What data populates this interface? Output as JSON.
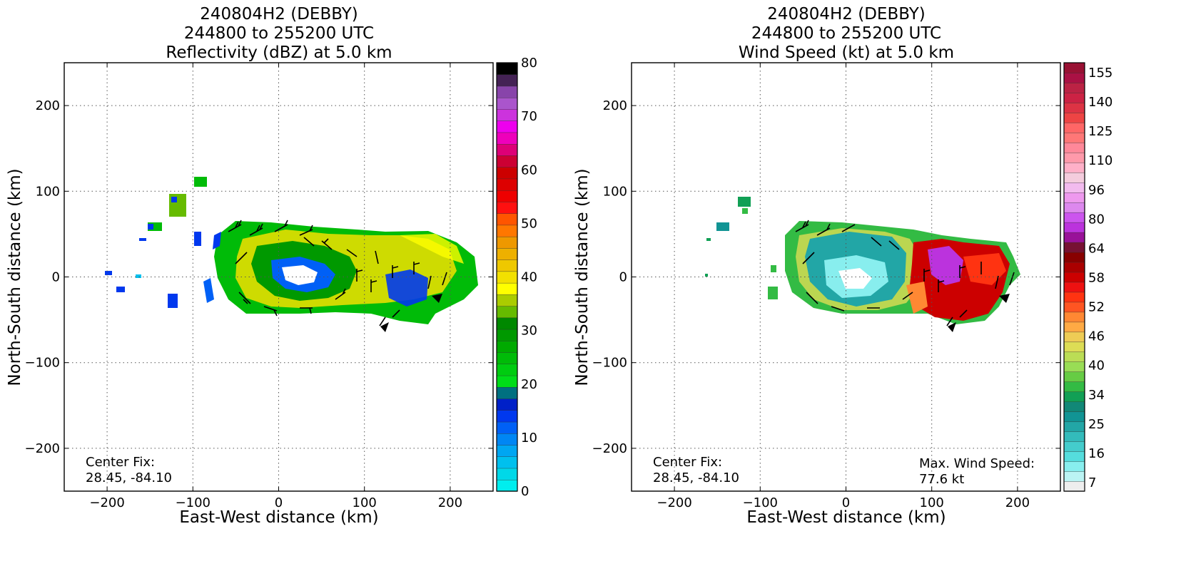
{
  "chart_data": [
    {
      "type": "heatmap",
      "title_lines": [
        "240804H2 (DEBBY)",
        "244800 to 255200 UTC",
        "Reflectivity (dBZ) at 5.0 km"
      ],
      "xlabel": "East-West distance (km)",
      "ylabel": "North-South distance (km)",
      "xlim": [
        -250,
        250
      ],
      "ylim": [
        -250,
        250
      ],
      "xticks": [
        -200,
        -100,
        0,
        100,
        200
      ],
      "yticks": [
        -200,
        -100,
        0,
        100,
        200
      ],
      "grid": true,
      "annotations": [
        {
          "text": "Center Fix:\n28.45, -84.10",
          "position": "bottom-left"
        }
      ],
      "colorbar": {
        "vmin": 0,
        "vmax": 80,
        "ticks": [
          0,
          10,
          20,
          30,
          40,
          50,
          60,
          70,
          80
        ],
        "colors": [
          "#00eeee",
          "#00d8e8",
          "#00c0ee",
          "#00a6f2",
          "#0086f4",
          "#0060f6",
          "#0038ee",
          "#0020c8",
          "#007080",
          "#00dd18",
          "#00cc10",
          "#00bb08",
          "#00aa00",
          "#009900",
          "#008800",
          "#66bb00",
          "#aacc00",
          "#ffff00",
          "#f2e000",
          "#eec800",
          "#eeb000",
          "#ee9800",
          "#ff7700",
          "#ff5500",
          "#ff1010",
          "#ee0000",
          "#dd0000",
          "#cc0000",
          "#cc0033",
          "#dd0077",
          "#ee00bb",
          "#ee00ee",
          "#cc33dd",
          "#aa55cc",
          "#8844aa",
          "#442255",
          "#000000"
        ]
      },
      "field_description": "Reflectivity field centered near x=60 km, y=0 km; bands of green/yellow with blue eye region"
    },
    {
      "type": "heatmap",
      "title_lines": [
        "240804H2 (DEBBY)",
        "244800 to 255200 UTC",
        "Wind Speed (kt) at 5.0 km"
      ],
      "xlabel": "East-West distance (km)",
      "ylabel": "North-South distance (km)",
      "xlim": [
        -250,
        250
      ],
      "ylim": [
        -250,
        250
      ],
      "xticks": [
        -200,
        -100,
        0,
        100,
        200
      ],
      "yticks": [
        -200,
        -100,
        0,
        100,
        200
      ],
      "grid": true,
      "annotations": [
        {
          "text": "Center Fix:\n28.45, -84.10",
          "position": "bottom-left"
        },
        {
          "text": "Max. Wind Speed:\n77.6 kt",
          "position": "bottom-right"
        }
      ],
      "colorbar": {
        "tick_labels": [
          "7",
          "16",
          "25",
          "34",
          "40",
          "46",
          "52",
          "58",
          "64",
          "80",
          "96",
          "110",
          "125",
          "140",
          "155"
        ],
        "colors": [
          "#eeeeee",
          "#bbf4f4",
          "#88eeee",
          "#55dddd",
          "#44cccc",
          "#33bbbb",
          "#22a6a6",
          "#119494",
          "#118877",
          "#11a055",
          "#33bb44",
          "#66cc44",
          "#99dd55",
          "#bbdd55",
          "#dddd55",
          "#eecc55",
          "#ffaa44",
          "#ff8833",
          "#ff5522",
          "#ff3311",
          "#ee1111",
          "#cc0000",
          "#aa0000",
          "#880000",
          "#771133",
          "#991199",
          "#bb33dd",
          "#cc55ee",
          "#dd88ee",
          "#ee99ee",
          "#f2bbee",
          "#f4ccdd",
          "#ffb0c8",
          "#ff99aa",
          "#ff8899",
          "#ff7777",
          "#ff6666",
          "#ee4444",
          "#dd3344",
          "#cc2244",
          "#bb2244",
          "#aa1144",
          "#991133"
        ]
      },
      "max_wind_kt": 77.6,
      "field_description": "Wind speed field; low speeds (teal/cyan) near center, high (red/purple) on eastern side"
    }
  ]
}
